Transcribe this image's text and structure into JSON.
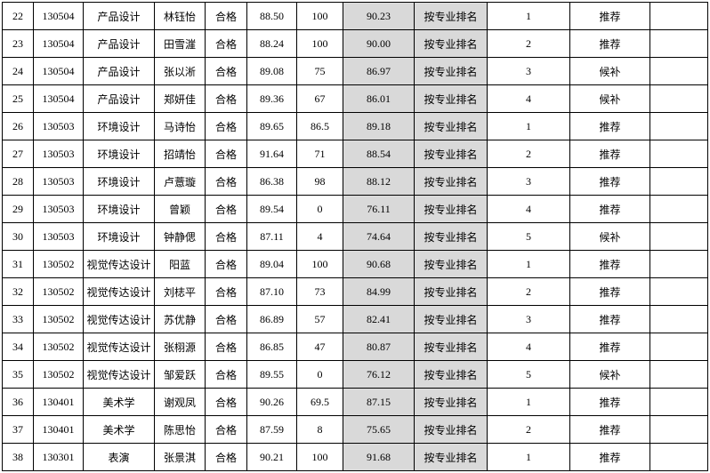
{
  "colors": {
    "shaded_column_bg": "#d9d9d9",
    "grid_border": "#000000",
    "text": "#000000",
    "page_bg": "#ffffff"
  },
  "table": {
    "columns": [
      "row-no",
      "major-code",
      "major-name",
      "student-name",
      "qualified-status",
      "score-a",
      "score-b",
      "composite-score",
      "ranking-method",
      "rank",
      "recommendation",
      "note"
    ],
    "rows": [
      [
        "22",
        "130504",
        "产品设计",
        "林钰怡",
        "合格",
        "88.50",
        "100",
        "90.23",
        "按专业排名",
        "1",
        "推荐",
        ""
      ],
      [
        "23",
        "130504",
        "产品设计",
        "田雪漄",
        "合格",
        "88.24",
        "100",
        "90.00",
        "按专业排名",
        "2",
        "推荐",
        ""
      ],
      [
        "24",
        "130504",
        "产品设计",
        "张以淅",
        "合格",
        "89.08",
        "75",
        "86.97",
        "按专业排名",
        "3",
        "候补",
        ""
      ],
      [
        "25",
        "130504",
        "产品设计",
        "郑妍佳",
        "合格",
        "89.36",
        "67",
        "86.01",
        "按专业排名",
        "4",
        "候补",
        ""
      ],
      [
        "26",
        "130503",
        "环境设计",
        "马诗怡",
        "合格",
        "89.65",
        "86.5",
        "89.18",
        "按专业排名",
        "1",
        "推荐",
        ""
      ],
      [
        "27",
        "130503",
        "环境设计",
        "招靖怡",
        "合格",
        "91.64",
        "71",
        "88.54",
        "按专业排名",
        "2",
        "推荐",
        ""
      ],
      [
        "28",
        "130503",
        "环境设计",
        "卢薏璇",
        "合格",
        "86.38",
        "98",
        "88.12",
        "按专业排名",
        "3",
        "推荐",
        ""
      ],
      [
        "29",
        "130503",
        "环境设计",
        "曾颖",
        "合格",
        "89.54",
        "0",
        "76.11",
        "按专业排名",
        "4",
        "推荐",
        ""
      ],
      [
        "30",
        "130503",
        "环境设计",
        "钟静偲",
        "合格",
        "87.11",
        "4",
        "74.64",
        "按专业排名",
        "5",
        "候补",
        ""
      ],
      [
        "31",
        "130502",
        "视觉传达设计",
        "阳蓝",
        "合格",
        "89.04",
        "100",
        "90.68",
        "按专业排名",
        "1",
        "推荐",
        ""
      ],
      [
        "32",
        "130502",
        "视觉传达设计",
        "刘梽平",
        "合格",
        "87.10",
        "73",
        "84.99",
        "按专业排名",
        "2",
        "推荐",
        ""
      ],
      [
        "33",
        "130502",
        "视觉传达设计",
        "苏优静",
        "合格",
        "86.89",
        "57",
        "82.41",
        "按专业排名",
        "3",
        "推荐",
        ""
      ],
      [
        "34",
        "130502",
        "视觉传达设计",
        "张栩源",
        "合格",
        "86.85",
        "47",
        "80.87",
        "按专业排名",
        "4",
        "推荐",
        ""
      ],
      [
        "35",
        "130502",
        "视觉传达设计",
        "邹爱跃",
        "合格",
        "89.55",
        "0",
        "76.12",
        "按专业排名",
        "5",
        "候补",
        ""
      ],
      [
        "36",
        "130401",
        "美术学",
        "谢观凤",
        "合格",
        "90.26",
        "69.5",
        "87.15",
        "按专业排名",
        "1",
        "推荐",
        ""
      ],
      [
        "37",
        "130401",
        "美术学",
        "陈思怡",
        "合格",
        "87.59",
        "8",
        "75.65",
        "按专业排名",
        "2",
        "推荐",
        ""
      ],
      [
        "38",
        "130301",
        "表演",
        "张景淇",
        "合格",
        "90.21",
        "100",
        "91.68",
        "按专业排名",
        "1",
        "推荐",
        ""
      ]
    ]
  }
}
